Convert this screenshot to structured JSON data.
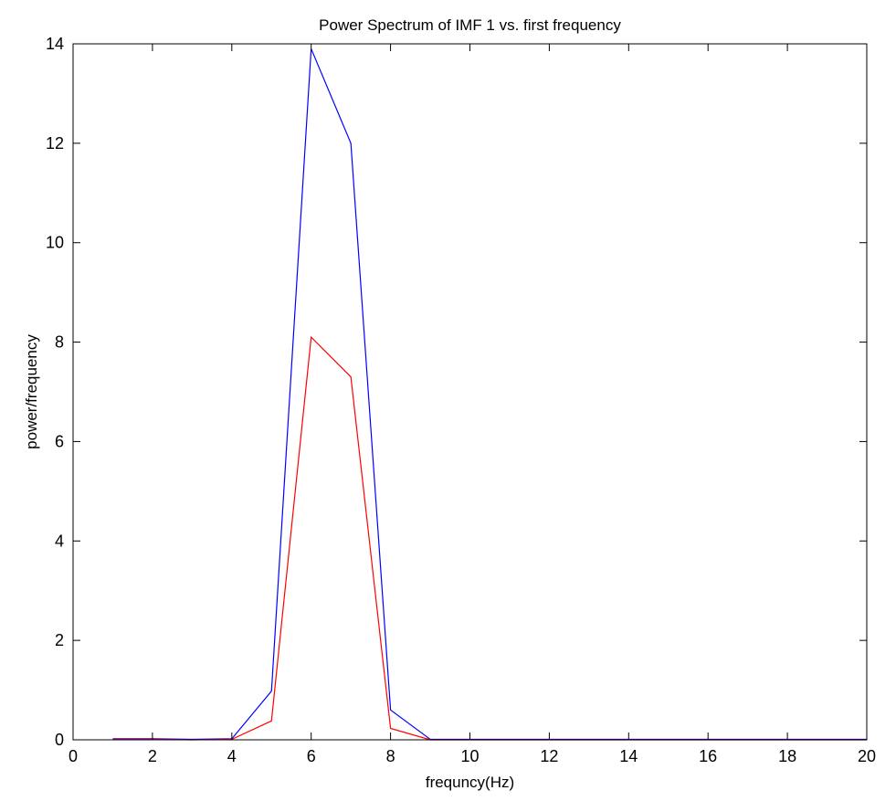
{
  "chart_data": {
    "type": "line",
    "title": "Power Spectrum of IMF 1 vs. first frequency",
    "xlabel": "frequncy(Hz)",
    "ylabel": "power/frequency",
    "xlim": [
      0,
      20
    ],
    "ylim": [
      0,
      14
    ],
    "xticks": [
      0,
      2,
      4,
      6,
      8,
      10,
      12,
      14,
      16,
      18,
      20
    ],
    "yticks": [
      0,
      2,
      4,
      6,
      8,
      10,
      12,
      14
    ],
    "grid": false,
    "legend": "none",
    "x": [
      1,
      2,
      3,
      4,
      5,
      6,
      7,
      8,
      9,
      10,
      11,
      12,
      13,
      14,
      15,
      16,
      17,
      18,
      19,
      20
    ],
    "series": [
      {
        "color": "#0000ff",
        "values": [
          0.02,
          0.02,
          0.01,
          0.02,
          0.98,
          13.9,
          12.0,
          0.6,
          0.01,
          0.01,
          0.01,
          0.01,
          0.01,
          0.01,
          0.01,
          0.01,
          0.01,
          0.01,
          0.01,
          0.01
        ]
      },
      {
        "color": "#ff0000",
        "values": [
          0.01,
          0.01,
          0.0,
          0.01,
          0.38,
          8.1,
          7.3,
          0.23,
          0.0,
          0.0,
          0.0,
          0.0,
          0.0,
          0.0,
          0.0,
          0.0,
          0.0,
          0.0,
          0.0,
          0.0
        ]
      }
    ]
  }
}
